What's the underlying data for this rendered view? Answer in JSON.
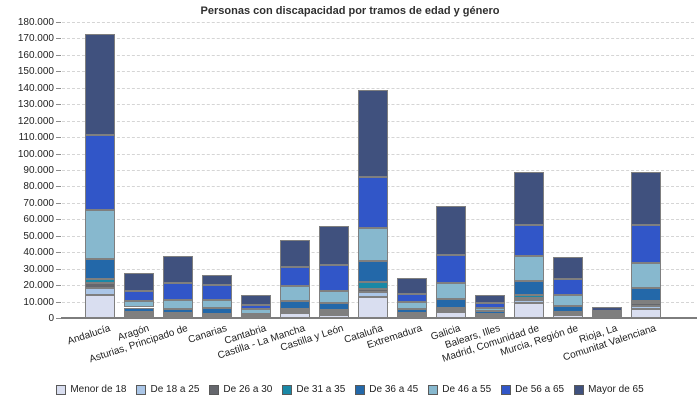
{
  "chart_data": {
    "type": "bar",
    "stacked": true,
    "title": "Personas con discapacidad por tramos de edad y género",
    "xlabel": "",
    "ylabel": "",
    "ylim": [
      0,
      180000
    ],
    "ytick_step": 10000,
    "ytick_labels": [
      "0",
      "10.000",
      "20.000",
      "30.000",
      "40.000",
      "50.000",
      "60.000",
      "70.000",
      "80.000",
      "90.000",
      "100.000",
      "110.000",
      "120.000",
      "130.000",
      "140.000",
      "150.000",
      "160.000",
      "170.000",
      "180.000"
    ],
    "grid": "horizontal-dashed",
    "legend_position": "bottom",
    "categories": [
      "Andalucía",
      "Aragón",
      "Asturias, Principado de",
      "Canarias",
      "Cantabria",
      "Castilla - La Mancha",
      "Castilla y León",
      "Cataluña",
      "Extremadura",
      "Galicia",
      "Balears, Illes",
      "Madrid, Comunidad de",
      "Murcia, Región de",
      "Rioja, La",
      "Comunitat Valenciana"
    ],
    "series": [
      {
        "name": "Menor de 18",
        "color": "#D9DEF0",
        "values": [
          14000,
          1500,
          1200,
          1000,
          600,
          3000,
          1700,
          12800,
          1500,
          3500,
          1200,
          9000,
          1600,
          500,
          5500
        ]
      },
      {
        "name": "De 18 a 25",
        "color": "#ABC6E7",
        "values": [
          4000,
          700,
          500,
          500,
          300,
          1000,
          900,
          3100,
          600,
          1000,
          500,
          1800,
          500,
          200,
          1800
        ]
      },
      {
        "name": "De 26 a 30",
        "color": "#65676D",
        "values": [
          3000,
          600,
          500,
          500,
          300,
          800,
          1200,
          2000,
          600,
          900,
          500,
          1600,
          700,
          200,
          1700
        ]
      },
      {
        "name": "De 31 a 35",
        "color": "#1A88A6",
        "values": [
          3000,
          800,
          700,
          700,
          400,
          800,
          800,
          4100,
          600,
          900,
          500,
          1400,
          800,
          300,
          1500
        ]
      },
      {
        "name": "De 36 a 45",
        "color": "#2368A9",
        "values": [
          12000,
          2800,
          2600,
          3100,
          1100,
          5000,
          4600,
          12500,
          2000,
          5500,
          1500,
          8800,
          3600,
          600,
          7700
        ]
      },
      {
        "name": "De 46 a 55",
        "color": "#87B8CE",
        "values": [
          29500,
          4100,
          5500,
          5400,
          2500,
          8700,
          7500,
          20400,
          4500,
          9500,
          2000,
          15200,
          7100,
          1000,
          15200
        ]
      },
      {
        "name": "De 56 a 65",
        "color": "#3156C8",
        "values": [
          45500,
          6000,
          10000,
          8600,
          3000,
          11800,
          15400,
          31000,
          5000,
          17300,
          2700,
          18700,
          9200,
          1200,
          22900
        ]
      },
      {
        "name": "Mayor de 65",
        "color": "#40517E",
        "values": [
          62000,
          11000,
          17000,
          6600,
          5700,
          16600,
          23700,
          53000,
          9700,
          29400,
          4800,
          32500,
          13800,
          2500,
          32500
        ]
      }
    ]
  }
}
